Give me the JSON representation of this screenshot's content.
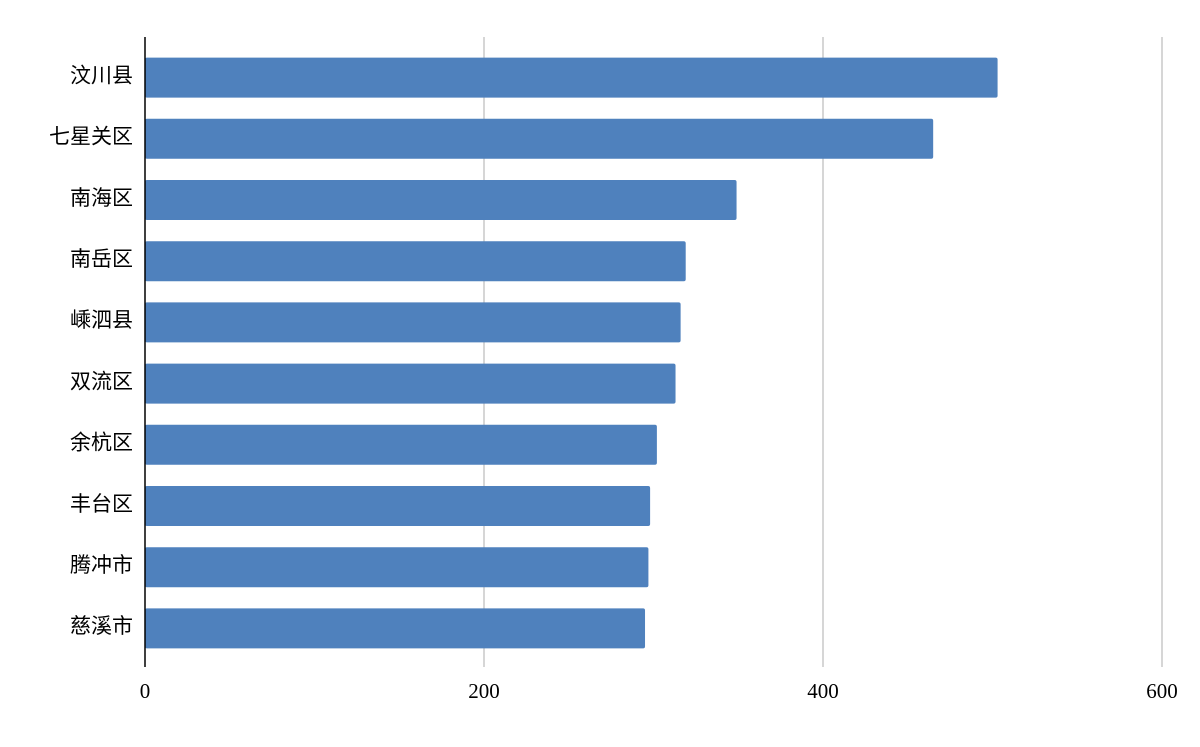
{
  "chart_data": {
    "type": "bar",
    "orientation": "horizontal",
    "categories": [
      "汶川县",
      "七星关区",
      "南海区",
      "南岳区",
      "嵊泗县",
      "双流区",
      "余杭区",
      "丰台区",
      "腾冲市",
      "慈溪市"
    ],
    "values": [
      503,
      465,
      349,
      319,
      316,
      313,
      302,
      298,
      297,
      295
    ],
    "color": "#4f81bd",
    "xlim": [
      0,
      600
    ],
    "xticks": [
      0,
      200,
      400,
      600
    ],
    "grid": true
  }
}
